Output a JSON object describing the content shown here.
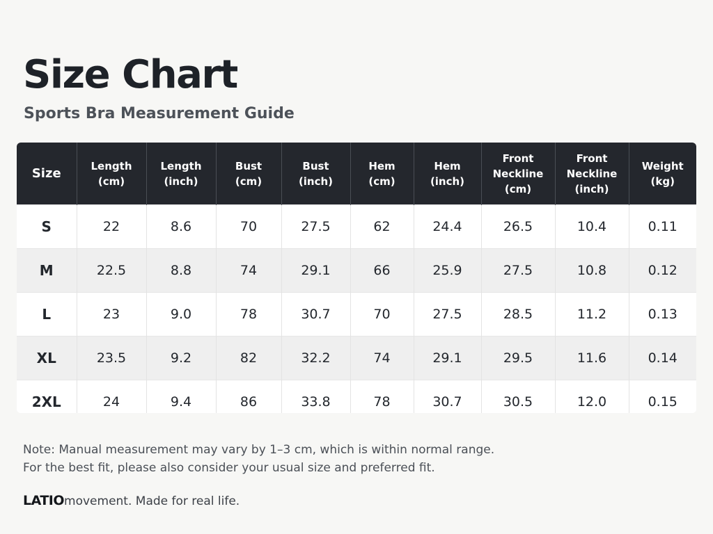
{
  "header": {
    "title": "Size Chart",
    "subtitle": "Sports Bra Measurement Guide"
  },
  "table": {
    "columns": [
      [
        "Size"
      ],
      [
        "Length",
        "(cm)"
      ],
      [
        "Length",
        "(inch)"
      ],
      [
        "Bust",
        "(cm)"
      ],
      [
        "Bust",
        "(inch)"
      ],
      [
        "Hem",
        "(cm)"
      ],
      [
        "Hem",
        "(inch)"
      ],
      [
        "Front",
        "Neckline",
        "(cm)"
      ],
      [
        "Front",
        "Neckline",
        "(inch)"
      ],
      [
        "Weight",
        "(kg)"
      ]
    ],
    "rows": [
      [
        "S",
        "22",
        "8.6",
        "70",
        "27.5",
        "62",
        "24.4",
        "26.5",
        "10.4",
        "0.11"
      ],
      [
        "M",
        "22.5",
        "8.8",
        "74",
        "29.1",
        "66",
        "25.9",
        "27.5",
        "10.8",
        "0.12"
      ],
      [
        "L",
        "23",
        "9.0",
        "78",
        "30.7",
        "70",
        "27.5",
        "28.5",
        "11.2",
        "0.13"
      ],
      [
        "XL",
        "23.5",
        "9.2",
        "82",
        "32.2",
        "74",
        "29.1",
        "29.5",
        "11.6",
        "0.14"
      ],
      [
        "2XL",
        "24",
        "9.4",
        "86",
        "33.8",
        "78",
        "30.7",
        "30.5",
        "12.0",
        "0.15"
      ]
    ]
  },
  "notes": {
    "line1": "Note: Manual measurement may vary by 1–3 cm, which is within normal range.",
    "line2": "For the best fit, please also consider your usual size and preferred fit."
  },
  "footer": {
    "brand": "LATIO",
    "tagline": "movement. Made for real life."
  }
}
